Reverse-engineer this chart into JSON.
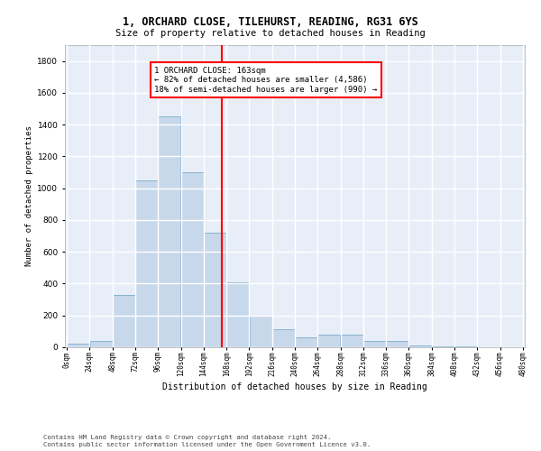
{
  "title1": "1, ORCHARD CLOSE, TILEHURST, READING, RG31 6YS",
  "title2": "Size of property relative to detached houses in Reading",
  "xlabel": "Distribution of detached houses by size in Reading",
  "ylabel": "Number of detached properties",
  "bar_color": "#c8d8eb",
  "bar_edgecolor": "#7aaac8",
  "background_color": "#e8eef8",
  "grid_color": "#ffffff",
  "bin_edges": [
    0,
    24,
    48,
    72,
    96,
    120,
    144,
    168,
    192,
    216,
    240,
    264,
    288,
    312,
    336,
    360,
    384,
    408,
    432,
    456,
    480
  ],
  "bar_heights": [
    20,
    40,
    330,
    1050,
    1450,
    1100,
    720,
    410,
    200,
    115,
    60,
    80,
    80,
    40,
    38,
    10,
    5,
    3,
    2,
    1
  ],
  "property_size": 163,
  "annotation_line1": "1 ORCHARD CLOSE: 163sqm",
  "annotation_line2": "← 82% of detached houses are smaller (4,586)",
  "annotation_line3": "18% of semi-detached houses are larger (990) →",
  "annotation_box_color": "white",
  "annotation_box_edgecolor": "red",
  "vline_color": "red",
  "vline_x": 163,
  "ylim": [
    0,
    1900
  ],
  "yticks": [
    0,
    200,
    400,
    600,
    800,
    1000,
    1200,
    1400,
    1600,
    1800
  ],
  "footnote1": "Contains HM Land Registry data © Crown copyright and database right 2024.",
  "footnote2": "Contains public sector information licensed under the Open Government Licence v3.0.",
  "tick_labels": [
    "0sqm",
    "24sqm",
    "48sqm",
    "72sqm",
    "96sqm",
    "120sqm",
    "144sqm",
    "168sqm",
    "192sqm",
    "216sqm",
    "240sqm",
    "264sqm",
    "288sqm",
    "312sqm",
    "336sqm",
    "360sqm",
    "384sqm",
    "408sqm",
    "432sqm",
    "456sqm",
    "480sqm"
  ]
}
